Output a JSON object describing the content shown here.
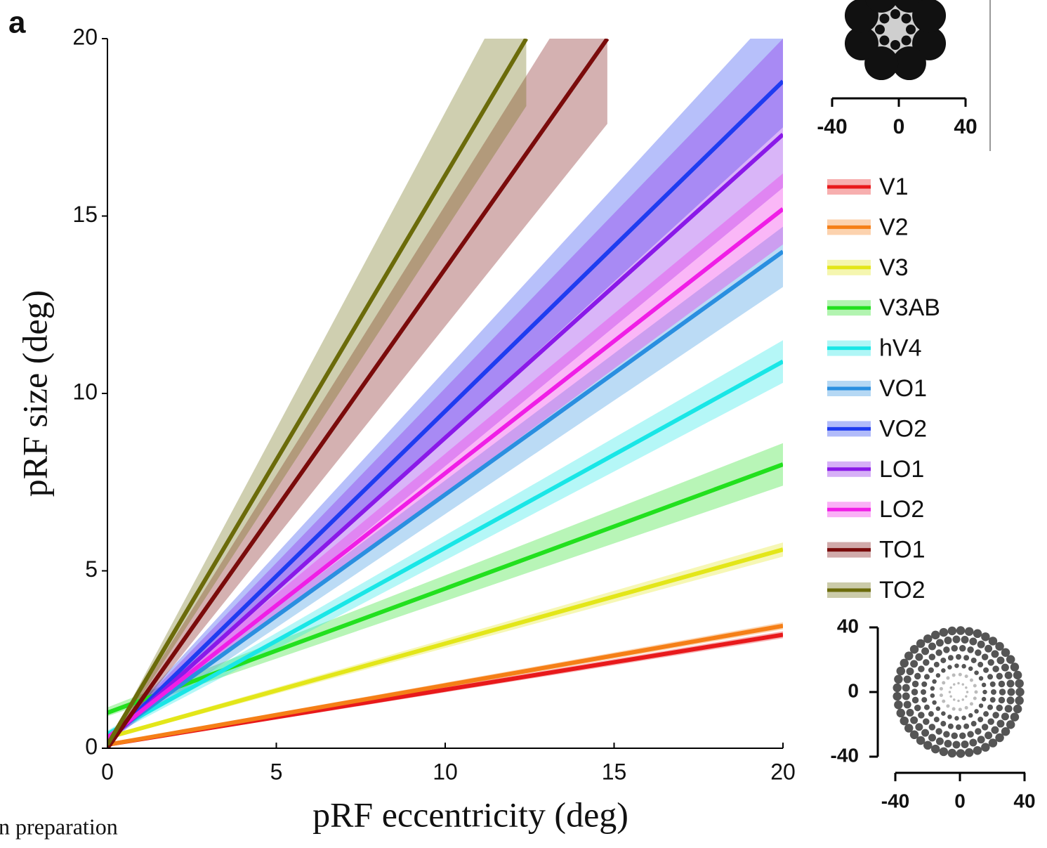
{
  "chart_data": {
    "type": "line",
    "panel_label": "a",
    "footnote": "n preparation",
    "xlabel": "pRF eccentricity (deg)",
    "ylabel": "pRF size (deg)",
    "xlim": [
      0,
      20
    ],
    "ylim": [
      0,
      20
    ],
    "xticks": [
      0,
      5,
      10,
      15,
      20
    ],
    "yticks": [
      0,
      5,
      10,
      15,
      20
    ],
    "series": [
      {
        "name": "V1",
        "color": "#e8191b",
        "x": [
          0,
          20
        ],
        "values": [
          0.1,
          3.2
        ],
        "lower": [
          0.05,
          3.1
        ],
        "upper": [
          0.15,
          3.3
        ]
      },
      {
        "name": "V2",
        "color": "#f57f17",
        "x": [
          0,
          20
        ],
        "values": [
          0.1,
          3.45
        ],
        "lower": [
          0.05,
          3.35
        ],
        "upper": [
          0.15,
          3.55
        ]
      },
      {
        "name": "V3",
        "color": "#e3e619",
        "x": [
          0,
          20
        ],
        "values": [
          0.3,
          5.6
        ],
        "lower": [
          0.25,
          5.4
        ],
        "upper": [
          0.35,
          5.8
        ]
      },
      {
        "name": "V3AB",
        "color": "#22e01e",
        "x": [
          0,
          20
        ],
        "values": [
          1.0,
          8.0
        ],
        "lower": [
          0.9,
          7.4
        ],
        "upper": [
          1.15,
          8.6
        ]
      },
      {
        "name": "hV4",
        "color": "#19e6e6",
        "x": [
          0,
          20
        ],
        "values": [
          0.4,
          10.9
        ],
        "lower": [
          0.3,
          10.3
        ],
        "upper": [
          0.5,
          11.5
        ]
      },
      {
        "name": "VO1",
        "color": "#2a8fe0",
        "x": [
          0,
          20
        ],
        "values": [
          0.3,
          14.0
        ],
        "lower": [
          0.2,
          13.0
        ],
        "upper": [
          0.4,
          14.7
        ]
      },
      {
        "name": "VO2",
        "color": "#1f3cf0",
        "x": [
          0,
          20
        ],
        "values": [
          0.2,
          18.8
        ],
        "lower": [
          0.1,
          17.5
        ],
        "upper": [
          0.3,
          21
        ]
      },
      {
        "name": "LO1",
        "color": "#8a19e8",
        "x": [
          0,
          20
        ],
        "values": [
          0.2,
          17.3
        ],
        "lower": [
          0.1,
          15.8
        ],
        "upper": [
          0.3,
          20
        ]
      },
      {
        "name": "LO2",
        "color": "#f01ee6",
        "x": [
          0,
          20
        ],
        "values": [
          0.3,
          15.2
        ],
        "lower": [
          0.2,
          14.2
        ],
        "upper": [
          0.4,
          16.2
        ]
      },
      {
        "name": "TO1",
        "color": "#7a0b0b",
        "x": [
          0,
          14.8
        ],
        "values": [
          0.0,
          20
        ],
        "lower": [
          0,
          17.6
        ],
        "upper": [
          0.1,
          22.6
        ]
      },
      {
        "name": "TO2",
        "color": "#6b6b0a",
        "x": [
          0,
          12.4
        ],
        "values": [
          0.1,
          20
        ],
        "lower": [
          0,
          18.1
        ],
        "upper": [
          0.1,
          22.2
        ]
      }
    ],
    "insets": [
      {
        "xticks": [
          -40,
          0,
          40
        ]
      },
      {
        "xticks": [
          -40,
          0,
          40
        ],
        "yticks": [
          40,
          0,
          -40
        ]
      }
    ]
  }
}
